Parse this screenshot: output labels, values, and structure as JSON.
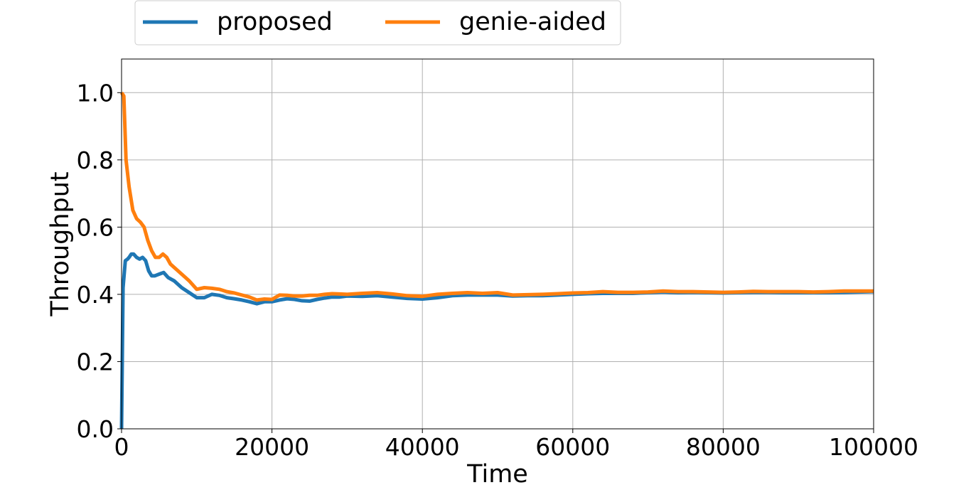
{
  "chart_data": {
    "type": "line",
    "title": "",
    "xlabel": "Time",
    "ylabel": "Throughput",
    "xlim": [
      0,
      100000
    ],
    "ylim": [
      0,
      1.1
    ],
    "grid": true,
    "legend_placement": "top-center, above plot",
    "x_ticks": [
      0,
      20000,
      40000,
      60000,
      80000,
      100000
    ],
    "x_tick_labels": [
      "0",
      "20000",
      "40000",
      "60000",
      "80000",
      "100000"
    ],
    "y_ticks": [
      0.0,
      0.2,
      0.4,
      0.6,
      0.8,
      1.0
    ],
    "y_tick_labels": [
      "0.0",
      "0.2",
      "0.4",
      "0.6",
      "0.8",
      "1.0"
    ],
    "series": [
      {
        "name": "proposed",
        "color": "#1f77b4",
        "x": [
          0,
          200,
          500,
          800,
          1000,
          1300,
          1600,
          2000,
          2400,
          2800,
          3200,
          3600,
          4000,
          4400,
          5000,
          5600,
          6200,
          7000,
          8000,
          9000,
          10000,
          11000,
          12000,
          13000,
          14000,
          15000,
          16000,
          17000,
          18000,
          19000,
          20000,
          21000,
          22000,
          23000,
          24000,
          25000,
          26000,
          27000,
          28000,
          29000,
          30000,
          32000,
          34000,
          36000,
          38000,
          40000,
          42000,
          44000,
          46000,
          48000,
          50000,
          52000,
          54000,
          56000,
          58000,
          60000,
          62000,
          64000,
          66000,
          68000,
          70000,
          72000,
          74000,
          76000,
          78000,
          80000,
          82000,
          84000,
          86000,
          88000,
          90000,
          92000,
          94000,
          96000,
          98000,
          100000
        ],
        "y": [
          0.0,
          0.42,
          0.5,
          0.505,
          0.51,
          0.52,
          0.52,
          0.51,
          0.505,
          0.51,
          0.5,
          0.47,
          0.455,
          0.455,
          0.46,
          0.465,
          0.45,
          0.44,
          0.42,
          0.405,
          0.39,
          0.39,
          0.4,
          0.397,
          0.39,
          0.387,
          0.383,
          0.378,
          0.372,
          0.378,
          0.378,
          0.383,
          0.387,
          0.385,
          0.381,
          0.38,
          0.385,
          0.389,
          0.392,
          0.392,
          0.395,
          0.394,
          0.396,
          0.392,
          0.388,
          0.386,
          0.39,
          0.396,
          0.398,
          0.398,
          0.398,
          0.395,
          0.396,
          0.396,
          0.398,
          0.4,
          0.402,
          0.403,
          0.403,
          0.403,
          0.405,
          0.407,
          0.405,
          0.406,
          0.405,
          0.404,
          0.405,
          0.406,
          0.406,
          0.405,
          0.405,
          0.405,
          0.405,
          0.406,
          0.407,
          0.408
        ]
      },
      {
        "name": "genie-aided",
        "color": "#ff7f0e",
        "x": [
          0,
          300,
          600,
          1000,
          1500,
          2000,
          2500,
          3000,
          3500,
          4000,
          4500,
          5000,
          5500,
          6000,
          6500,
          7000,
          8000,
          9000,
          10000,
          11000,
          12000,
          13000,
          14000,
          15000,
          16000,
          17000,
          18000,
          19000,
          20000,
          21000,
          22000,
          23000,
          24000,
          25000,
          26000,
          27000,
          28000,
          29000,
          30000,
          32000,
          34000,
          36000,
          38000,
          40000,
          42000,
          44000,
          46000,
          48000,
          50000,
          52000,
          54000,
          56000,
          58000,
          60000,
          62000,
          64000,
          66000,
          68000,
          70000,
          72000,
          74000,
          76000,
          78000,
          80000,
          82000,
          84000,
          86000,
          88000,
          90000,
          92000,
          94000,
          96000,
          98000,
          100000
        ],
        "y": [
          1.0,
          0.99,
          0.8,
          0.72,
          0.65,
          0.625,
          0.615,
          0.6,
          0.56,
          0.53,
          0.51,
          0.51,
          0.52,
          0.51,
          0.49,
          0.48,
          0.46,
          0.44,
          0.415,
          0.42,
          0.418,
          0.415,
          0.408,
          0.404,
          0.398,
          0.392,
          0.383,
          0.386,
          0.385,
          0.398,
          0.397,
          0.395,
          0.395,
          0.397,
          0.397,
          0.4,
          0.402,
          0.401,
          0.4,
          0.403,
          0.405,
          0.401,
          0.396,
          0.394,
          0.4,
          0.403,
          0.405,
          0.403,
          0.405,
          0.398,
          0.399,
          0.4,
          0.402,
          0.404,
          0.405,
          0.408,
          0.406,
          0.406,
          0.407,
          0.41,
          0.408,
          0.408,
          0.407,
          0.406,
          0.407,
          0.409,
          0.408,
          0.408,
          0.408,
          0.407,
          0.408,
          0.41,
          0.41,
          0.41
        ]
      }
    ]
  }
}
